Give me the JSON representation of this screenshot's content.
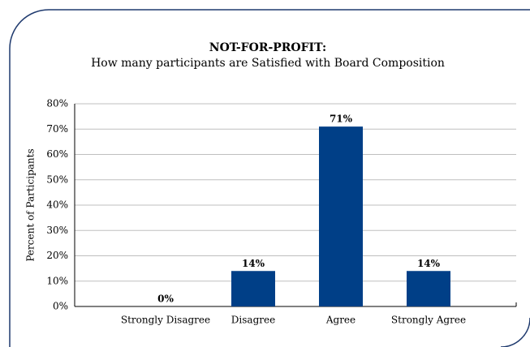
{
  "chart_data": {
    "type": "bar",
    "title": "NOT-FOR-PROFIT:",
    "subtitle": "How many participants are Satisfied with Board Composition",
    "y_label": "Percent of Participants",
    "categories": [
      "Strongly Disagree",
      "Disagree",
      "Agree",
      "Strongly Agree"
    ],
    "values": [
      0,
      14,
      71,
      14
    ],
    "value_labels": [
      "0%",
      "14%",
      "71%",
      "14%"
    ],
    "color": "#003f87",
    "ylim": [
      0,
      80
    ],
    "yticks": [
      {
        "value": 0,
        "label": "0%"
      },
      {
        "value": 10,
        "label": "10%"
      },
      {
        "value": 20,
        "label": "20%"
      },
      {
        "value": 30,
        "label": "30%"
      },
      {
        "value": 40,
        "label": "40%"
      },
      {
        "value": 50,
        "label": "50%"
      },
      {
        "value": 60,
        "label": "60%"
      },
      {
        "value": 70,
        "label": "70%"
      },
      {
        "value": 80,
        "label": "80%"
      }
    ],
    "grid": true
  }
}
